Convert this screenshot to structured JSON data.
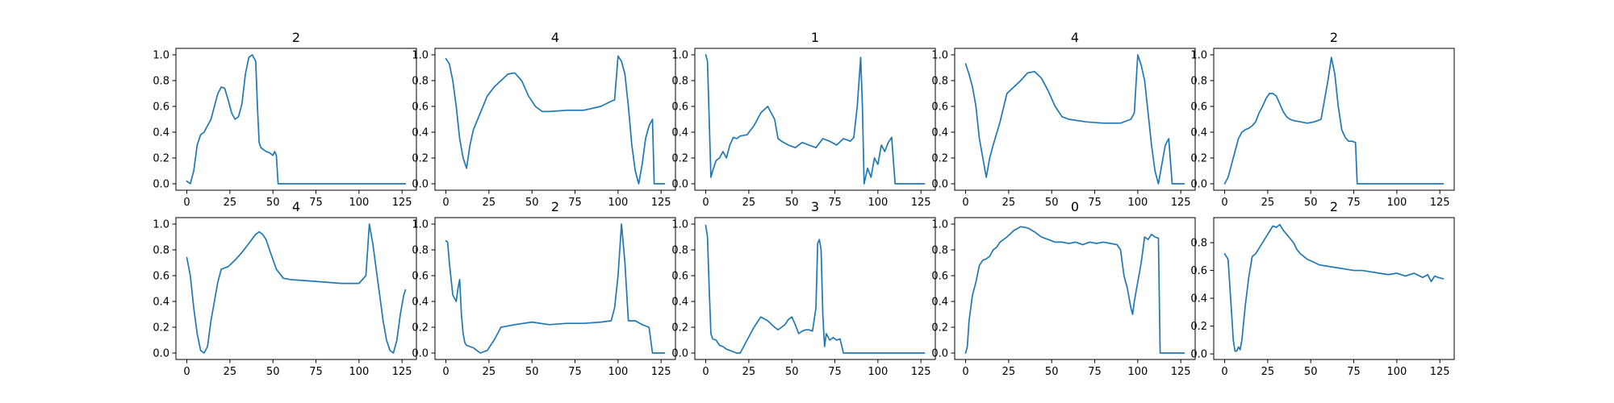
{
  "figure": {
    "background": "#ffffff",
    "line_color": "#1f77b4",
    "axis_color": "#000000"
  },
  "chart_data": [
    {
      "type": "line",
      "title": "2",
      "xlim": [
        -6.35,
        133.35
      ],
      "ylim": [
        -0.05,
        1.05
      ],
      "xticks": [
        0,
        25,
        50,
        75,
        100,
        125
      ],
      "yticks": [
        0.0,
        0.2,
        0.4,
        0.6,
        0.8,
        1.0
      ],
      "ytick_labels": [
        "0.0",
        "0.2",
        "0.4",
        "0.6",
        "0.8",
        "1.0"
      ],
      "x": [
        0,
        2,
        4,
        6,
        8,
        10,
        12,
        14,
        16,
        18,
        20,
        22,
        24,
        26,
        28,
        30,
        32,
        34,
        36,
        38,
        40,
        41,
        42,
        43,
        44,
        46,
        48,
        50,
        51,
        52,
        53,
        55,
        60,
        127
      ],
      "y": [
        0.02,
        0.0,
        0.1,
        0.3,
        0.38,
        0.4,
        0.45,
        0.5,
        0.6,
        0.7,
        0.75,
        0.74,
        0.65,
        0.55,
        0.5,
        0.52,
        0.62,
        0.85,
        0.98,
        1.0,
        0.95,
        0.6,
        0.32,
        0.28,
        0.27,
        0.25,
        0.24,
        0.22,
        0.25,
        0.22,
        0.0,
        0.0,
        0.0,
        0.0
      ]
    },
    {
      "type": "line",
      "title": "4",
      "xlim": [
        -6.35,
        133.35
      ],
      "ylim": [
        -0.05,
        1.05
      ],
      "xticks": [
        0,
        25,
        50,
        75,
        100,
        125
      ],
      "yticks": [
        0.0,
        0.2,
        0.4,
        0.6,
        0.8,
        1.0
      ],
      "ytick_labels": [
        "0.0",
        "0.2",
        "0.4",
        "0.6",
        "0.8",
        "1.0"
      ],
      "x": [
        0,
        2,
        4,
        6,
        8,
        10,
        12,
        14,
        16,
        20,
        24,
        28,
        32,
        36,
        40,
        44,
        48,
        52,
        56,
        60,
        70,
        80,
        90,
        96,
        98,
        100,
        102,
        104,
        106,
        108,
        110,
        112,
        114,
        116,
        118,
        120,
        121,
        122,
        124,
        126,
        127
      ],
      "y": [
        0.97,
        0.93,
        0.8,
        0.6,
        0.35,
        0.2,
        0.12,
        0.3,
        0.42,
        0.55,
        0.68,
        0.75,
        0.8,
        0.85,
        0.86,
        0.8,
        0.68,
        0.6,
        0.56,
        0.56,
        0.57,
        0.57,
        0.6,
        0.64,
        0.65,
        0.99,
        0.95,
        0.85,
        0.6,
        0.3,
        0.1,
        0.0,
        0.15,
        0.35,
        0.45,
        0.5,
        0.0,
        0.0,
        0.0,
        0.0,
        0.0
      ]
    },
    {
      "type": "line",
      "title": "1",
      "xlim": [
        -6.35,
        133.35
      ],
      "ylim": [
        -0.05,
        1.05
      ],
      "xticks": [
        0,
        25,
        50,
        75,
        100,
        125
      ],
      "yticks": [
        0.0,
        0.2,
        0.4,
        0.6,
        0.8,
        1.0
      ],
      "ytick_labels": [
        "0.0",
        "0.2",
        "0.4",
        "0.6",
        "0.8",
        "1.0"
      ],
      "x": [
        0,
        1,
        2,
        3,
        4,
        6,
        8,
        10,
        12,
        14,
        16,
        18,
        20,
        24,
        28,
        32,
        36,
        40,
        42,
        44,
        48,
        52,
        56,
        60,
        64,
        68,
        72,
        76,
        80,
        84,
        86,
        88,
        90,
        91,
        92,
        94,
        96,
        98,
        100,
        102,
        104,
        106,
        108,
        110,
        112,
        127
      ],
      "y": [
        1.0,
        0.95,
        0.5,
        0.05,
        0.1,
        0.18,
        0.2,
        0.25,
        0.2,
        0.3,
        0.36,
        0.35,
        0.37,
        0.38,
        0.45,
        0.55,
        0.6,
        0.5,
        0.35,
        0.33,
        0.3,
        0.28,
        0.32,
        0.3,
        0.28,
        0.35,
        0.33,
        0.3,
        0.35,
        0.33,
        0.36,
        0.6,
        0.98,
        0.6,
        0.0,
        0.12,
        0.05,
        0.2,
        0.15,
        0.3,
        0.25,
        0.32,
        0.36,
        0.0,
        0.0,
        0.0
      ]
    },
    {
      "type": "line",
      "title": "4",
      "xlim": [
        -6.35,
        133.35
      ],
      "ylim": [
        -0.05,
        1.05
      ],
      "xticks": [
        0,
        25,
        50,
        75,
        100,
        125
      ],
      "yticks": [
        0.0,
        0.2,
        0.4,
        0.6,
        0.8,
        1.0
      ],
      "ytick_labels": [
        "0.0",
        "0.2",
        "0.4",
        "0.6",
        "0.8",
        "1.0"
      ],
      "x": [
        0,
        2,
        4,
        6,
        8,
        10,
        12,
        14,
        16,
        20,
        24,
        28,
        32,
        36,
        40,
        44,
        48,
        52,
        56,
        60,
        70,
        80,
        90,
        96,
        98,
        100,
        102,
        104,
        106,
        108,
        110,
        112,
        114,
        116,
        118,
        120,
        122,
        124,
        126,
        127
      ],
      "y": [
        0.93,
        0.85,
        0.75,
        0.6,
        0.35,
        0.2,
        0.05,
        0.2,
        0.3,
        0.48,
        0.7,
        0.75,
        0.8,
        0.86,
        0.87,
        0.82,
        0.72,
        0.6,
        0.52,
        0.5,
        0.48,
        0.47,
        0.47,
        0.5,
        0.55,
        1.0,
        0.92,
        0.8,
        0.55,
        0.3,
        0.1,
        0.0,
        0.15,
        0.3,
        0.35,
        0.0,
        0.0,
        0.0,
        0.0,
        0.0
      ]
    },
    {
      "type": "line",
      "title": "2",
      "xlim": [
        -6.35,
        133.35
      ],
      "ylim": [
        -0.05,
        1.05
      ],
      "xticks": [
        0,
        25,
        50,
        75,
        100,
        125
      ],
      "yticks": [
        0.0,
        0.2,
        0.4,
        0.6,
        0.8,
        1.0
      ],
      "ytick_labels": [
        "0.0",
        "0.2",
        "0.4",
        "0.6",
        "0.8",
        "1.0"
      ],
      "x": [
        0,
        2,
        4,
        6,
        8,
        10,
        12,
        14,
        16,
        18,
        20,
        22,
        24,
        26,
        28,
        30,
        32,
        34,
        36,
        38,
        40,
        44,
        48,
        52,
        56,
        58,
        60,
        62,
        64,
        66,
        68,
        70,
        72,
        74,
        76,
        77,
        78,
        80,
        127
      ],
      "y": [
        0.0,
        0.05,
        0.15,
        0.25,
        0.35,
        0.4,
        0.42,
        0.43,
        0.45,
        0.48,
        0.55,
        0.6,
        0.66,
        0.7,
        0.7,
        0.68,
        0.62,
        0.56,
        0.52,
        0.5,
        0.49,
        0.48,
        0.47,
        0.48,
        0.5,
        0.65,
        0.8,
        0.98,
        0.85,
        0.6,
        0.42,
        0.36,
        0.33,
        0.33,
        0.32,
        0.0,
        0.0,
        0.0,
        0.0
      ]
    },
    {
      "type": "line",
      "title": "4",
      "xlim": [
        -6.35,
        133.35
      ],
      "ylim": [
        -0.05,
        1.05
      ],
      "xticks": [
        0,
        25,
        50,
        75,
        100,
        125
      ],
      "yticks": [
        0.0,
        0.2,
        0.4,
        0.6,
        0.8,
        1.0
      ],
      "ytick_labels": [
        "0.0",
        "0.2",
        "0.4",
        "0.6",
        "0.8",
        "1.0"
      ],
      "x": [
        0,
        2,
        4,
        6,
        8,
        10,
        12,
        14,
        16,
        18,
        20,
        24,
        28,
        32,
        36,
        40,
        42,
        44,
        46,
        48,
        52,
        56,
        60,
        70,
        80,
        90,
        100,
        104,
        106,
        108,
        110,
        112,
        114,
        116,
        118,
        120,
        122,
        124,
        126,
        127
      ],
      "y": [
        0.74,
        0.6,
        0.35,
        0.15,
        0.02,
        0.0,
        0.05,
        0.25,
        0.4,
        0.55,
        0.65,
        0.67,
        0.72,
        0.78,
        0.85,
        0.92,
        0.94,
        0.92,
        0.88,
        0.8,
        0.65,
        0.58,
        0.57,
        0.56,
        0.55,
        0.54,
        0.54,
        0.6,
        1.0,
        0.85,
        0.65,
        0.45,
        0.25,
        0.1,
        0.02,
        0.0,
        0.1,
        0.3,
        0.45,
        0.49
      ]
    },
    {
      "type": "line",
      "title": "2",
      "xlim": [
        -6.35,
        133.35
      ],
      "ylim": [
        -0.05,
        1.05
      ],
      "xticks": [
        0,
        25,
        50,
        75,
        100,
        125
      ],
      "yticks": [
        0.0,
        0.2,
        0.4,
        0.6,
        0.8,
        1.0
      ],
      "ytick_labels": [
        "0.0",
        "0.2",
        "0.4",
        "0.6",
        "0.8",
        "1.0"
      ],
      "x": [
        0,
        1,
        2,
        4,
        6,
        7,
        8,
        9,
        10,
        11,
        12,
        14,
        16,
        18,
        20,
        24,
        28,
        32,
        36,
        40,
        50,
        60,
        70,
        80,
        90,
        96,
        98,
        100,
        102,
        104,
        106,
        110,
        114,
        118,
        120,
        124,
        127
      ],
      "y": [
        0.87,
        0.86,
        0.7,
        0.45,
        0.4,
        0.5,
        0.57,
        0.3,
        0.15,
        0.08,
        0.06,
        0.05,
        0.04,
        0.02,
        0.0,
        0.02,
        0.1,
        0.2,
        0.21,
        0.22,
        0.24,
        0.22,
        0.23,
        0.23,
        0.24,
        0.25,
        0.35,
        0.6,
        1.0,
        0.7,
        0.25,
        0.25,
        0.22,
        0.2,
        0.0,
        0.0,
        0.0
      ]
    },
    {
      "type": "line",
      "title": "3",
      "xlim": [
        -6.35,
        133.35
      ],
      "ylim": [
        -0.05,
        1.05
      ],
      "xticks": [
        0,
        25,
        50,
        75,
        100,
        125
      ],
      "yticks": [
        0.0,
        0.2,
        0.4,
        0.6,
        0.8,
        1.0
      ],
      "ytick_labels": [
        "0.0",
        "0.2",
        "0.4",
        "0.6",
        "0.8",
        "1.0"
      ],
      "x": [
        0,
        1,
        2,
        3,
        4,
        6,
        8,
        10,
        12,
        14,
        16,
        18,
        20,
        24,
        28,
        32,
        36,
        40,
        42,
        44,
        46,
        48,
        50,
        52,
        54,
        56,
        58,
        60,
        62,
        64,
        65,
        66,
        67,
        68,
        69,
        70,
        72,
        74,
        76,
        78,
        80,
        127
      ],
      "y": [
        0.99,
        0.9,
        0.5,
        0.15,
        0.11,
        0.1,
        0.06,
        0.05,
        0.03,
        0.02,
        0.01,
        0.0,
        0.0,
        0.1,
        0.2,
        0.28,
        0.25,
        0.2,
        0.18,
        0.2,
        0.22,
        0.26,
        0.28,
        0.22,
        0.15,
        0.17,
        0.18,
        0.18,
        0.17,
        0.35,
        0.85,
        0.88,
        0.8,
        0.3,
        0.05,
        0.15,
        0.1,
        0.12,
        0.1,
        0.11,
        0.0,
        0.0
      ]
    },
    {
      "type": "line",
      "title": "0",
      "xlim": [
        -6.35,
        133.35
      ],
      "ylim": [
        -0.05,
        1.05
      ],
      "xticks": [
        0,
        25,
        50,
        75,
        100,
        125
      ],
      "yticks": [
        0.0,
        0.2,
        0.4,
        0.6,
        0.8,
        1.0
      ],
      "ytick_labels": [
        "0.0",
        "0.2",
        "0.4",
        "0.6",
        "0.8",
        "1.0"
      ],
      "x": [
        0,
        1,
        2,
        4,
        6,
        8,
        10,
        12,
        14,
        16,
        18,
        20,
        24,
        28,
        32,
        36,
        40,
        44,
        48,
        52,
        56,
        60,
        64,
        68,
        72,
        76,
        80,
        84,
        88,
        90,
        92,
        94,
        96,
        97,
        98,
        100,
        102,
        104,
        106,
        108,
        110,
        112,
        113,
        114,
        116,
        120,
        124,
        127
      ],
      "y": [
        0.0,
        0.05,
        0.25,
        0.45,
        0.55,
        0.68,
        0.72,
        0.73,
        0.75,
        0.8,
        0.82,
        0.86,
        0.9,
        0.95,
        0.98,
        0.97,
        0.94,
        0.9,
        0.88,
        0.86,
        0.86,
        0.85,
        0.86,
        0.84,
        0.86,
        0.85,
        0.86,
        0.85,
        0.84,
        0.8,
        0.6,
        0.5,
        0.35,
        0.3,
        0.4,
        0.55,
        0.7,
        0.9,
        0.88,
        0.92,
        0.9,
        0.89,
        0.0,
        0.0,
        0.0,
        0.0,
        0.0,
        0.0
      ]
    },
    {
      "type": "line",
      "title": "2",
      "xlim": [
        -6.35,
        133.35
      ],
      "ylim": [
        -0.04,
        0.98
      ],
      "xticks": [
        0,
        25,
        50,
        75,
        100,
        125
      ],
      "yticks": [
        0.0,
        0.2,
        0.4,
        0.6,
        0.8
      ],
      "ytick_labels": [
        "0.0",
        "0.2",
        "0.4",
        "0.6",
        "0.8"
      ],
      "x": [
        0,
        2,
        4,
        5,
        6,
        7,
        8,
        9,
        10,
        12,
        14,
        16,
        18,
        20,
        22,
        24,
        26,
        28,
        30,
        32,
        34,
        36,
        38,
        40,
        42,
        44,
        46,
        48,
        50,
        55,
        60,
        65,
        70,
        75,
        80,
        85,
        90,
        95,
        100,
        105,
        110,
        115,
        118,
        120,
        122,
        124,
        127
      ],
      "y": [
        0.72,
        0.68,
        0.3,
        0.1,
        0.02,
        0.02,
        0.05,
        0.03,
        0.1,
        0.35,
        0.55,
        0.7,
        0.72,
        0.76,
        0.8,
        0.84,
        0.88,
        0.92,
        0.91,
        0.93,
        0.89,
        0.86,
        0.83,
        0.8,
        0.75,
        0.72,
        0.7,
        0.68,
        0.67,
        0.64,
        0.63,
        0.62,
        0.61,
        0.6,
        0.6,
        0.59,
        0.58,
        0.57,
        0.58,
        0.56,
        0.58,
        0.55,
        0.57,
        0.52,
        0.56,
        0.55,
        0.54
      ]
    }
  ]
}
